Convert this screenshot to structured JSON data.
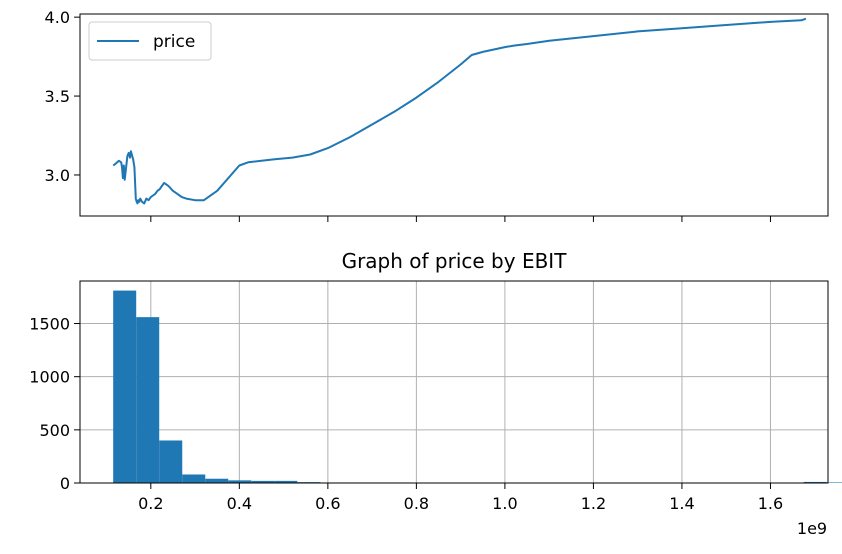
{
  "chart_data": [
    {
      "type": "line",
      "title": "",
      "xlabel": "",
      "ylabel": "",
      "xlim": [
        40000000,
        1730000000
      ],
      "ylim": [
        2.74,
        4.02
      ],
      "grid": false,
      "legend": {
        "position": "top-left",
        "entries": [
          "price"
        ]
      },
      "y_ticks": [
        3.0,
        3.5,
        4.0
      ],
      "y_tick_labels": [
        "3.0",
        "3.5",
        "4.0"
      ],
      "x_ticks": [
        200000000,
        400000000,
        600000000,
        800000000,
        1000000000,
        1200000000,
        1400000000,
        1600000000
      ],
      "x_tick_labels_shown": false,
      "series": [
        {
          "name": "price",
          "color": "#1f77b4",
          "x": [
            115000000,
            120000000,
            128000000,
            133000000,
            135000000,
            137000000,
            139000000,
            141000000,
            143000000,
            147000000,
            150000000,
            153000000,
            155000000,
            157000000,
            160000000,
            163000000,
            166000000,
            168000000,
            170000000,
            172000000,
            174000000,
            176000000,
            180000000,
            185000000,
            190000000,
            195000000,
            200000000,
            205000000,
            210000000,
            215000000,
            220000000,
            225000000,
            230000000,
            235000000,
            240000000,
            250000000,
            260000000,
            270000000,
            280000000,
            300000000,
            320000000,
            350000000,
            400000000,
            420000000,
            450000000,
            480000000,
            520000000,
            560000000,
            600000000,
            650000000,
            700000000,
            750000000,
            800000000,
            850000000,
            900000000,
            925000000,
            950000000,
            1000000000,
            1020000000,
            1050000000,
            1100000000,
            1200000000,
            1300000000,
            1400000000,
            1500000000,
            1600000000,
            1670000000,
            1680000000
          ],
          "y": [
            3.06,
            3.07,
            3.09,
            3.08,
            3.05,
            2.98,
            3.06,
            2.97,
            3.02,
            3.12,
            3.14,
            3.11,
            3.15,
            3.13,
            3.1,
            3.05,
            2.85,
            2.83,
            2.82,
            2.84,
            2.83,
            2.85,
            2.83,
            2.82,
            2.85,
            2.84,
            2.86,
            2.87,
            2.88,
            2.9,
            2.91,
            2.93,
            2.95,
            2.94,
            2.93,
            2.9,
            2.88,
            2.86,
            2.85,
            2.84,
            2.84,
            2.9,
            3.06,
            3.08,
            3.09,
            3.1,
            3.11,
            3.13,
            3.17,
            3.24,
            3.32,
            3.4,
            3.49,
            3.59,
            3.7,
            3.76,
            3.78,
            3.81,
            3.82,
            3.83,
            3.85,
            3.88,
            3.91,
            3.93,
            3.95,
            3.97,
            3.98,
            3.99
          ]
        }
      ]
    },
    {
      "type": "bar",
      "title": "Graph of price by EBIT",
      "xlabel": "",
      "ylabel": "",
      "xlim": [
        40000000,
        1730000000
      ],
      "ylim": [
        0,
        1900
      ],
      "grid": true,
      "x_ticks": [
        200000000,
        400000000,
        600000000,
        800000000,
        1000000000,
        1200000000,
        1400000000,
        1600000000
      ],
      "x_tick_labels": [
        "0.2",
        "0.4",
        "0.6",
        "0.8",
        "1.0",
        "1.2",
        "1.4",
        "1.6"
      ],
      "x_offset_label": "1e9",
      "y_ticks": [
        0,
        500,
        1000,
        1500
      ],
      "y_tick_labels": [
        "0",
        "500",
        "1000",
        "1500"
      ],
      "bin_start": 115000000,
      "bin_width": 52000000,
      "values": [
        1810,
        1560,
        400,
        80,
        40,
        25,
        20,
        20,
        8,
        5,
        5,
        5,
        5,
        4,
        4,
        3,
        3,
        3,
        3,
        3,
        3,
        3,
        3,
        3,
        3,
        3,
        3,
        0,
        0,
        0,
        10,
        5
      ]
    }
  ],
  "colors": {
    "series": "#1f77b4",
    "grid": "#b0b0b0",
    "axes": "#000000"
  }
}
